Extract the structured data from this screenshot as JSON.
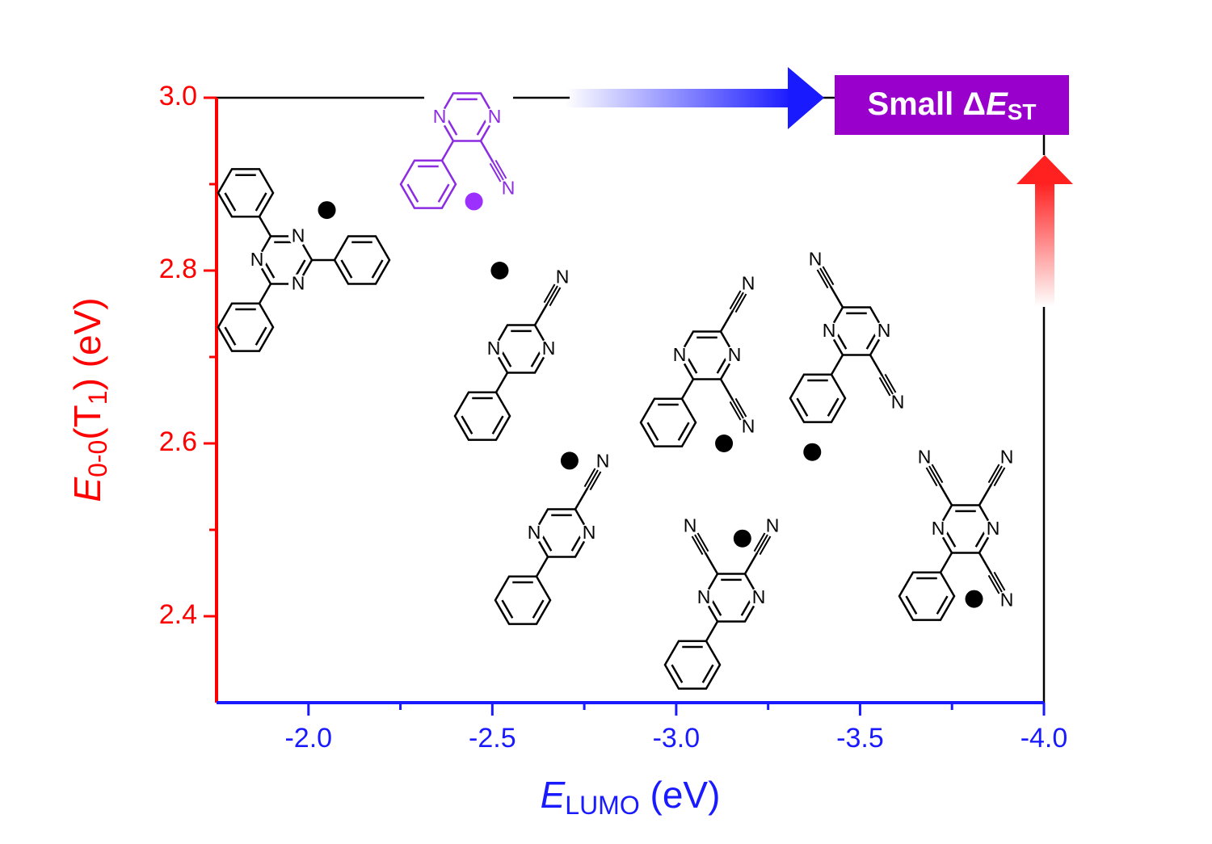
{
  "chart_data": {
    "type": "scatter",
    "xlabel": [
      "E",
      "LUMO",
      " (eV)"
    ],
    "ylabel": [
      "E",
      "0-0",
      "(T",
      "1",
      ") (eV)"
    ],
    "annotation": [
      "Small Δ",
      "E",
      "ST"
    ],
    "molecule_atom_label": "N",
    "x": [
      -2.05,
      -2.45,
      -2.52,
      -2.71,
      -3.13,
      -3.18,
      -3.37,
      -3.81
    ],
    "values": [
      2.87,
      2.88,
      2.8,
      2.58,
      2.6,
      2.49,
      2.59,
      2.42
    ],
    "colors": [
      "#000000",
      "#9b30ff",
      "#000000",
      "#000000",
      "#000000",
      "#000000",
      "#000000",
      "#000000"
    ],
    "xlim": [
      -1.75,
      -4.0
    ],
    "ylim": [
      2.3,
      3.0
    ],
    "xticks": [
      {
        "value": -2,
        "label": "-2.0"
      },
      -2.5,
      {
        "value": -3,
        "label": "-3.0"
      },
      -3.5,
      {
        "value": -4,
        "label": "-4.0"
      }
    ],
    "x_minor_ticks": [
      -2.25,
      -2.75,
      -3.25,
      -3.75
    ],
    "yticks": [
      2.4,
      2.6,
      2.8,
      {
        "value": 3,
        "label": "3.0"
      }
    ],
    "y_minor_ticks": [
      2.5,
      2.7,
      2.9
    ],
    "x_axis_color": "#1a1aff",
    "y_axis_color": "#ff0000"
  }
}
